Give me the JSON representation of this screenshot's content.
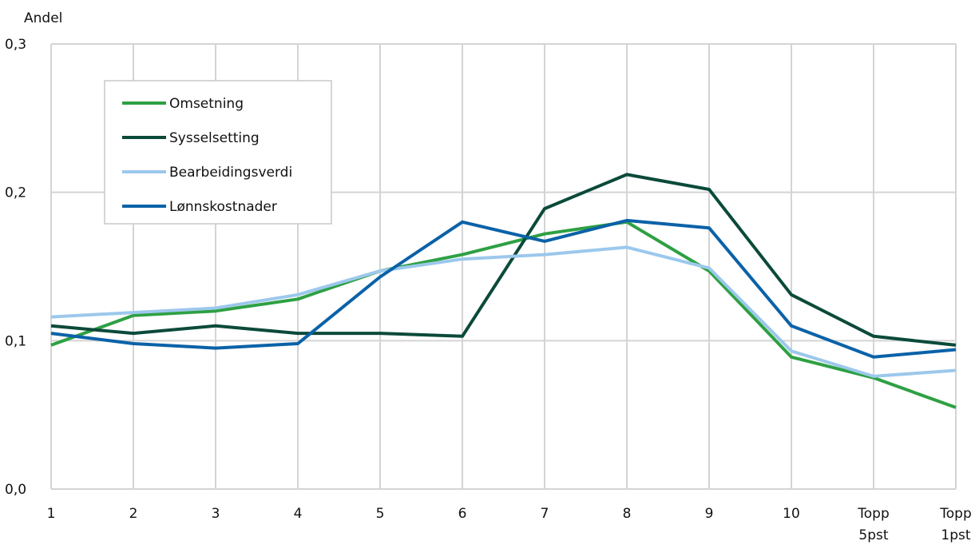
{
  "chart_data": {
    "type": "line",
    "ylabel": "Andel",
    "ylim": [
      0,
      0.3
    ],
    "yticks": [
      "0,0",
      "0,1",
      "0,2",
      "0,3"
    ],
    "ytick_values": [
      0,
      0.1,
      0.2,
      0.3
    ],
    "categories": [
      [
        "1"
      ],
      [
        "2"
      ],
      [
        "3"
      ],
      [
        "4"
      ],
      [
        "5"
      ],
      [
        "6"
      ],
      [
        "7"
      ],
      [
        "8"
      ],
      [
        "9"
      ],
      [
        "10"
      ],
      [
        "Topp",
        "5pst"
      ],
      [
        "Topp",
        "1pst"
      ]
    ],
    "grid": "both",
    "legend_position": "top-left",
    "series": [
      {
        "name": "Omsetning",
        "color": "#2ea043",
        "values": [
          0.097,
          0.117,
          0.12,
          0.128,
          0.147,
          0.158,
          0.172,
          0.18,
          0.147,
          0.089,
          0.075,
          0.055
        ]
      },
      {
        "name": "Sysselsetting",
        "color": "#0b4a3a",
        "values": [
          0.11,
          0.105,
          0.11,
          0.105,
          0.105,
          0.103,
          0.189,
          0.212,
          0.202,
          0.131,
          0.103,
          0.097
        ]
      },
      {
        "name": "Bearbeidingsverdi",
        "color": "#9cc8ec",
        "values": [
          0.116,
          0.119,
          0.122,
          0.131,
          0.147,
          0.155,
          0.158,
          0.163,
          0.149,
          0.093,
          0.076,
          0.08
        ]
      },
      {
        "name": "Lønnskostnader",
        "color": "#0a62a8",
        "values": [
          0.105,
          0.098,
          0.095,
          0.098,
          0.143,
          0.18,
          0.167,
          0.181,
          0.176,
          0.11,
          0.089,
          0.094
        ]
      }
    ]
  }
}
